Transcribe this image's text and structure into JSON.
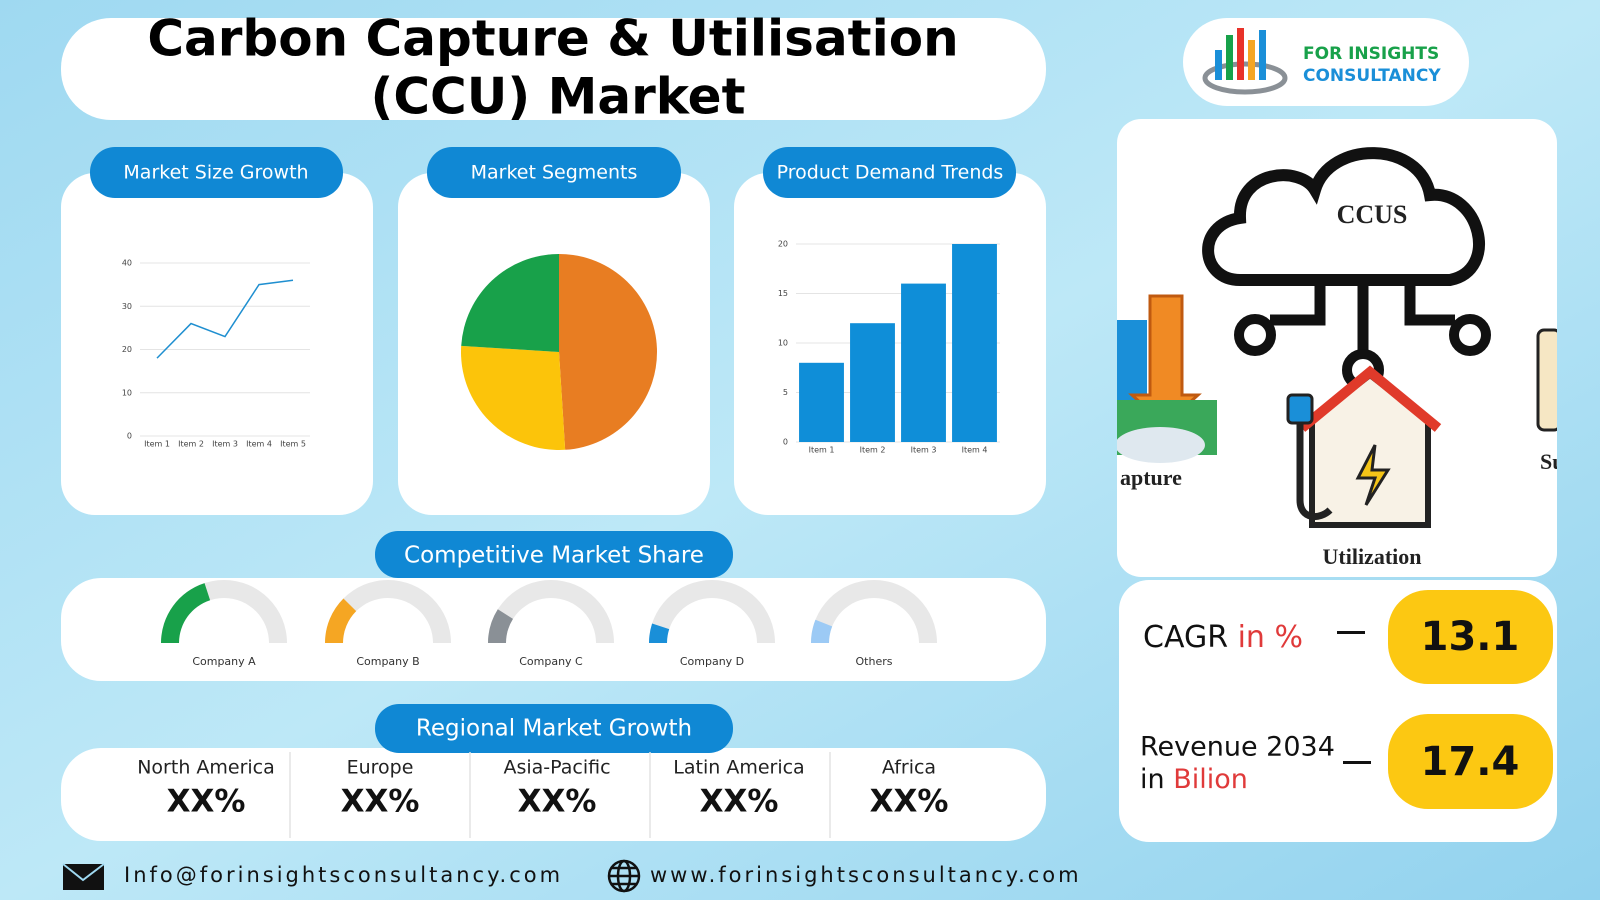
{
  "header": {
    "title_lines": [
      "Carbon Capture & Utilisation",
      "(CCU) Market"
    ]
  },
  "logo": {
    "line1": "FOR INSIGHTS",
    "line2": "CONSULTANCY"
  },
  "chart_data": [
    {
      "type": "line",
      "title": "Market Size Growth",
      "categories": [
        "Item 1",
        "Item 2",
        "Item 3",
        "Item 4",
        "Item 5"
      ],
      "values": [
        18,
        26,
        23,
        35,
        36
      ],
      "color": "#1f8fd0",
      "ylim": [
        0,
        40
      ],
      "yticks": [
        0,
        10,
        20,
        30,
        40
      ],
      "grid": true
    },
    {
      "type": "pie",
      "title": "Market Segments",
      "values": [
        49,
        27,
        24
      ],
      "colors": [
        "#e87d22",
        "#fcc40a",
        "#18a14a"
      ]
    },
    {
      "type": "bar",
      "title": "Product Demand Trends",
      "categories": [
        "Item 1",
        "Item 2",
        "Item 3",
        "Item 4"
      ],
      "values": [
        8,
        12,
        16,
        20
      ],
      "color": "#0f8ed8",
      "ylim": [
        0,
        20
      ],
      "yticks": [
        0,
        5,
        10,
        15,
        20
      ],
      "grid": true
    },
    {
      "type": "gauge",
      "title": "Competitive Market Share",
      "categories": [
        "Company A",
        "Company B",
        "Company C",
        "Company D",
        "Others"
      ],
      "values": [
        40,
        25,
        18,
        10,
        12
      ],
      "colors": [
        "#18a14a",
        "#f5a623",
        "#8a9096",
        "#1a8fd8",
        "#9ccaf5"
      ],
      "ylim": [
        0,
        100
      ]
    }
  ],
  "regional": {
    "title": "Regional Market Growth",
    "regions": [
      {
        "name": "North America",
        "value": "XX%"
      },
      {
        "name": "Europe",
        "value": "XX%"
      },
      {
        "name": "Asia-Pacific",
        "value": "XX%"
      },
      {
        "name": "Latin America",
        "value": "XX%"
      },
      {
        "name": "Africa",
        "value": "XX%"
      }
    ]
  },
  "illustration": {
    "center": "CCUS",
    "bottom": "Utilization",
    "left": "apture",
    "right": "Su"
  },
  "kpis": [
    {
      "label": "CAGR",
      "unit": "in %",
      "value": 13.1
    },
    {
      "label": "Revenue 2034",
      "unit_prefix": "in",
      "unit": "Bilion",
      "value": 17.4
    }
  ],
  "footer": {
    "email": "Info@forinsightsconsultancy.com",
    "website": "www.forinsightsconsultancy.com"
  }
}
